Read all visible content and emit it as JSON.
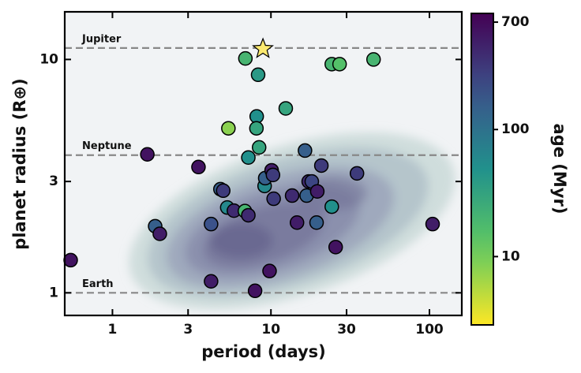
{
  "chart_data": {
    "type": "scatter",
    "x_label": "period (days)",
    "y_label": "planet radius (R⊕)",
    "colorbar_label": "age (Myr)",
    "x_scale": "log",
    "y_scale": "log",
    "color_scale": "log",
    "colormap": "viridis_r",
    "xlim": [
      0.5,
      160
    ],
    "ylim": [
      0.8,
      16
    ],
    "clim": [
      2.9,
      820
    ],
    "xticks": [
      1,
      3,
      10,
      30,
      100
    ],
    "yticks": [
      1,
      3,
      10
    ],
    "cticks": [
      10,
      100,
      700
    ],
    "reference_lines": [
      {
        "label": "Jupiter",
        "value": 11.2
      },
      {
        "label": "Neptune",
        "value": 3.89
      },
      {
        "label": "Earth",
        "value": 1
      }
    ],
    "x": [
      0.545,
      1.66,
      1.86,
      1.99,
      3.49,
      4.19,
      4.19,
      4.8,
      5.0,
      5.39,
      5.3,
      5.84,
      6.85,
      7.2,
      6.9,
      7.2,
      8.13,
      8.1,
      8.42,
      8.3,
      7.94,
      9.12,
      9.2,
      9.8,
      10.1,
      10.3,
      10.4,
      12.4,
      13.6,
      14.6,
      16.4,
      16.8,
      17.3,
      18.1,
      19.4,
      19.6,
      20.8,
      24.2,
      24.2,
      25.6,
      27.1,
      34.9,
      44.4,
      104.7
    ],
    "y": [
      1.38,
      3.92,
      1.93,
      1.79,
      3.46,
      1.12,
      1.97,
      2.78,
      2.74,
      5.07,
      2.32,
      2.25,
      2.24,
      2.15,
      10.1,
      3.8,
      5.7,
      5.07,
      4.2,
      8.6,
      1.02,
      2.87,
      3.1,
      1.24,
      3.35,
      3.2,
      2.53,
      6.17,
      2.61,
      2.0,
      4.07,
      2.61,
      3.0,
      3.0,
      2.0,
      2.72,
      3.51,
      9.55,
      2.34,
      1.57,
      9.55,
      3.25,
      10.0,
      1.97
    ],
    "age": [
      600,
      600,
      150,
      500,
      600,
      500,
      200,
      150,
      300,
      8,
      60,
      400,
      20,
      400,
      20,
      50,
      50,
      30,
      30,
      40,
      600,
      60,
      150,
      600,
      500,
      300,
      300,
      30,
      400,
      500,
      150,
      150,
      400,
      250,
      150,
      500,
      300,
      20,
      50,
      600,
      15,
      300,
      20,
      500
    ],
    "highlight": {
      "x": 8.9,
      "y": 11.1,
      "color": "#fbe970"
    }
  }
}
